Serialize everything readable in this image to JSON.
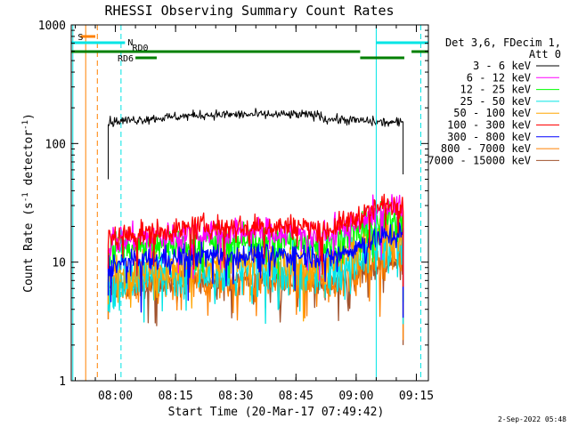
{
  "chart_data": {
    "type": "line",
    "title": "RHESSI Observing Summary Count Rates",
    "xlabel": "Start Time (20-Mar-17 07:49:42)",
    "ylabel_main": "Count Rate (s",
    "ylabel_sup1": "-1",
    "ylabel_mid": " detector",
    "ylabel_sup2": "-1",
    "ylabel_end": ")",
    "yscale": "log",
    "ylim": [
      1,
      1000
    ],
    "xlim_minutes": [
      -0.7,
      88.3
    ],
    "x_ticks": [
      {
        "label": "08:00",
        "t": 10.3
      },
      {
        "label": "08:15",
        "t": 25.3
      },
      {
        "label": "08:30",
        "t": 40.3
      },
      {
        "label": "08:45",
        "t": 55.3
      },
      {
        "label": "09:00",
        "t": 70.3
      },
      {
        "label": "09:15",
        "t": 85.3
      }
    ],
    "y_ticks": [
      {
        "label": "1",
        "v": 1
      },
      {
        "label": "10",
        "v": 10
      },
      {
        "label": "100",
        "v": 100
      },
      {
        "label": "1000",
        "v": 1000
      }
    ],
    "legend_title": [
      "Det 3,6, FDecim 1,",
      "Att 0"
    ],
    "series": [
      {
        "name": "3 - 6 keV",
        "color": "#000000",
        "start": 152,
        "plateau": 175,
        "end": 150,
        "noise": 0.02
      },
      {
        "name": "6 - 12 keV",
        "color": "#ff00ff",
        "start": 15,
        "plateau": 18,
        "end": 29,
        "noise": 0.06
      },
      {
        "name": "12 - 25 keV",
        "color": "#00ff00",
        "start": 13,
        "plateau": 15,
        "end": 23,
        "noise": 0.07
      },
      {
        "name": "25 - 50 keV",
        "color": "#00e5e5",
        "start": 7,
        "plateau": 9,
        "end": 15,
        "noise": 0.12
      },
      {
        "name": "50 - 100 keV",
        "color": "#ffa500",
        "start": 8,
        "plateau": 10,
        "end": 18,
        "noise": 0.08
      },
      {
        "name": "100 - 300 keV",
        "color": "#ff0000",
        "start": 16,
        "plateau": 20,
        "end": 31,
        "noise": 0.05
      },
      {
        "name": "300 - 800 keV",
        "color": "#0000ff",
        "start": 9.5,
        "plateau": 11.5,
        "end": 17,
        "noise": 0.05
      },
      {
        "name": "800 - 7000 keV",
        "color": "#ff8000",
        "start": 6,
        "plateau": 7,
        "end": 11,
        "noise": 0.08
      },
      {
        "name": "7000 - 15000 keV",
        "color": "#a0522d",
        "start": 6,
        "plateau": 7,
        "end": 10,
        "noise": 0.05
      }
    ],
    "time_bars": [
      {
        "label": "S",
        "color": "#ff8000",
        "t_start": 1.6,
        "t_end": 5.3,
        "level": 1
      },
      {
        "label": "N",
        "color": "#00e5e5",
        "t_start": -0.7,
        "t_end": 12.7,
        "level": 2
      },
      {
        "label": "",
        "color": "#00e5e5",
        "t_start": 75.3,
        "t_end": 88.3,
        "level": 2
      },
      {
        "label": "RD0",
        "color": "#008000",
        "t_start": -0.7,
        "t_end": 71.3,
        "level": 3
      },
      {
        "label": "",
        "color": "#008000",
        "t_start": 84.1,
        "t_end": 88.3,
        "level": 3
      },
      {
        "label": "RD6",
        "color": "#008000",
        "t_start": 15.3,
        "t_end": 20.6,
        "level": 4
      },
      {
        "label": "",
        "color": "#008000",
        "t_start": 71.3,
        "t_end": 82.3,
        "level": 4
      }
    ],
    "vlines": [
      {
        "t": -0.3,
        "color": "#00e5e5",
        "style": "solid"
      },
      {
        "t": 2.9,
        "color": "#ff8000",
        "style": "solid"
      },
      {
        "t": 5.8,
        "color": "#ff8000",
        "style": "dashed"
      },
      {
        "t": 11.7,
        "color": "#00e5e5",
        "style": "dashed"
      },
      {
        "t": 75.3,
        "color": "#00e5e5",
        "style": "solid"
      },
      {
        "t": 86.4,
        "color": "#00e5e5",
        "style": "dashed"
      }
    ],
    "data_start_minutes": 8.5,
    "data_end_minutes": 82.0,
    "rise_start_minutes": 62.0,
    "grid": false,
    "legend_position": "right"
  },
  "footer": {
    "date": "2-Sep-2022 05:48"
  }
}
